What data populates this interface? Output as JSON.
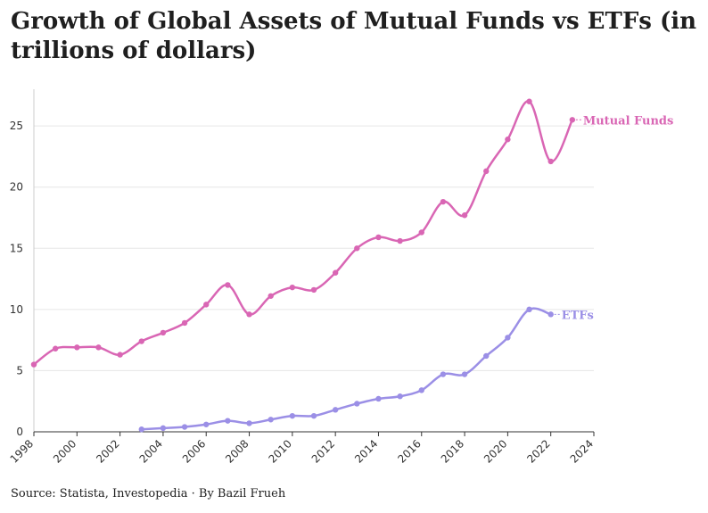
{
  "title": "Growth of Global Assets of Mutual Funds vs ETFs (in trillions of dollars)",
  "source": "Source: Statista, Investopedia · By Bazil Frueh",
  "chart_data": {
    "type": "line",
    "title": "Growth of Global Assets of Mutual Funds vs ETFs (in trillions of dollars)",
    "xlim": [
      1998,
      2024
    ],
    "ylim": [
      0,
      28
    ],
    "x_ticks": [
      1998,
      2000,
      2002,
      2004,
      2006,
      2008,
      2010,
      2012,
      2014,
      2016,
      2018,
      2020,
      2022,
      2024
    ],
    "y_ticks": [
      0,
      5,
      10,
      15,
      20,
      25
    ],
    "grid": "horizontal",
    "series": [
      {
        "name": "Mutual Funds",
        "color": "#d966b4",
        "x": [
          1998,
          1999,
          2000,
          2001,
          2002,
          2003,
          2004,
          2005,
          2006,
          2007,
          2008,
          2009,
          2010,
          2011,
          2012,
          2013,
          2014,
          2015,
          2016,
          2017,
          2018,
          2019,
          2020,
          2021,
          2022,
          2023
        ],
        "values": [
          5.5,
          6.8,
          6.9,
          6.9,
          6.3,
          7.4,
          8.1,
          8.9,
          10.4,
          12.0,
          9.6,
          11.1,
          11.8,
          11.6,
          13.0,
          15.0,
          15.9,
          15.6,
          16.3,
          18.8,
          17.7,
          21.3,
          23.9,
          27.0,
          22.1,
          25.5
        ]
      },
      {
        "name": "ETFs",
        "color": "#9b8fe6",
        "x": [
          2003,
          2004,
          2005,
          2006,
          2007,
          2008,
          2009,
          2010,
          2011,
          2012,
          2013,
          2014,
          2015,
          2016,
          2017,
          2018,
          2019,
          2020,
          2021,
          2022
        ],
        "values": [
          0.2,
          0.3,
          0.4,
          0.6,
          0.9,
          0.7,
          1.0,
          1.3,
          1.3,
          1.8,
          2.3,
          2.7,
          2.9,
          3.4,
          4.7,
          4.7,
          6.2,
          7.7,
          10.0,
          9.6
        ]
      }
    ]
  }
}
